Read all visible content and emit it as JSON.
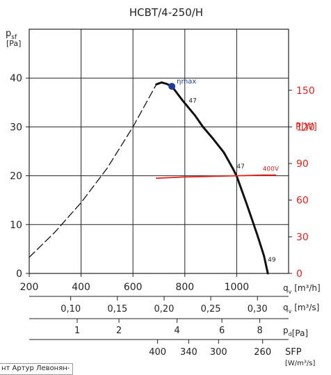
{
  "chart_data": {
    "type": "line",
    "title": "HCBT/4-250/H",
    "y_axis": {
      "label_main": "p",
      "label_sub": "sf",
      "unit": "[Pa]",
      "ylim": [
        0,
        50
      ],
      "ticks": [
        0,
        10,
        20,
        30,
        40
      ]
    },
    "x_axis": {
      "label_main": "q",
      "label_sub": "v",
      "unit": "[m³/h]",
      "xlim": [
        200,
        1200
      ],
      "ticks": [
        200,
        400,
        600,
        800,
        1000
      ]
    },
    "power_axis": {
      "label": "P[W]",
      "ylim": [
        0,
        200
      ],
      "ticks": [
        0,
        30,
        60,
        90,
        120,
        150
      ]
    },
    "secondary_scales": [
      {
        "label_main": "q",
        "label_sub": "v",
        "unit": "[m³/s]",
        "ticks": [
          {
            "text": "0,10",
            "at_m3h": 360
          },
          {
            "text": "0,15",
            "at_m3h": 540
          },
          {
            "text": "0,20",
            "at_m3h": 720
          },
          {
            "text": "0,25",
            "at_m3h": 900
          },
          {
            "text": "0,30",
            "at_m3h": 1080
          }
        ]
      },
      {
        "label_main": "p",
        "label_sub": "d",
        "unit": "[Pa]",
        "ticks": [
          {
            "text": "1",
            "at_m3h": 385
          },
          {
            "text": "2",
            "at_m3h": 546
          },
          {
            "text": "4",
            "at_m3h": 770
          },
          {
            "text": "6",
            "at_m3h": 943
          },
          {
            "text": "8",
            "at_m3h": 1089
          }
        ]
      },
      {
        "label_main": "SFP",
        "unit": "[W/m³/s]",
        "ticks": [
          {
            "text": "400",
            "at_m3h": 695
          },
          {
            "text": "340",
            "at_m3h": 815
          },
          {
            "text": "300",
            "at_m3h": 930
          },
          {
            "text": "260",
            "at_m3h": 1100
          }
        ]
      }
    ],
    "series": [
      {
        "style": "dashed",
        "color": "#111111",
        "points": [
          [
            200,
            3.3
          ],
          [
            300,
            8.5
          ],
          [
            400,
            14.5
          ],
          [
            500,
            21.5
          ],
          [
            600,
            30
          ],
          [
            690,
            38.7
          ]
        ]
      },
      {
        "style": "solid",
        "color": "#111111",
        "points": [
          [
            690,
            38.7
          ],
          [
            710,
            39.1
          ],
          [
            730,
            38.8
          ],
          [
            750,
            38.3
          ],
          [
            790,
            35.5
          ],
          [
            840,
            32.3
          ],
          [
            870,
            30
          ],
          [
            910,
            27.5
          ],
          [
            950,
            24.8
          ],
          [
            985,
            21.5
          ],
          [
            1000,
            19.9
          ],
          [
            1040,
            14
          ],
          [
            1080,
            7.8
          ],
          [
            1105,
            3.6
          ],
          [
            1120,
            0
          ]
        ]
      },
      {
        "style": "solid",
        "color": "#e8201c",
        "axis": "power",
        "points": [
          [
            690,
            78
          ],
          [
            800,
            79
          ],
          [
            900,
            79.5
          ],
          [
            1000,
            80
          ],
          [
            1100,
            80.5
          ],
          [
            1150,
            80.5
          ]
        ]
      }
    ],
    "annotations": [
      {
        "text": "ηmax",
        "marker": true,
        "x": 750,
        "y": 38.3
      },
      {
        "text": "47",
        "x": 815,
        "y": 35
      },
      {
        "text": "47",
        "x": 1000,
        "y": 21.5
      },
      {
        "text": "49",
        "x": 1120,
        "y": 2.4
      },
      {
        "text": "400V",
        "axis": "power",
        "x": 1100,
        "y": 84
      }
    ],
    "grid": true,
    "colors": {
      "curve": "#111111",
      "power": "#e8201c",
      "eta_marker": "#1f3b9c",
      "grid": "#222222"
    }
  },
  "footer_text": "нт Артур Левонян-"
}
